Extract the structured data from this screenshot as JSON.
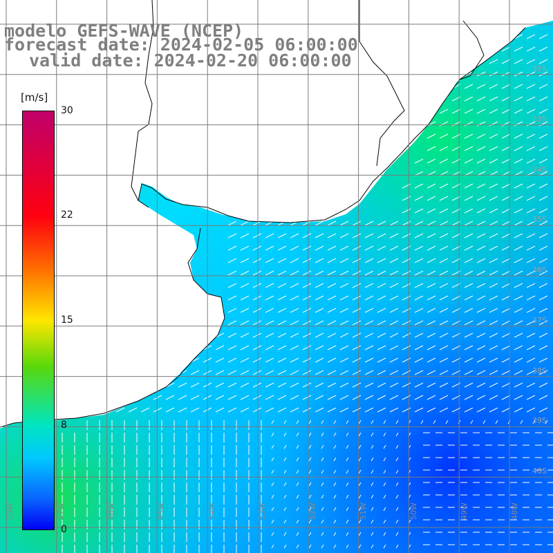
{
  "title": {
    "model": "modelo GEFS-WAVE (NCEP)",
    "forecast": "forecast date: 2024-02-05 06:00:00",
    "valid": "valid date: 2024-02-20 06:00:00"
  },
  "colorbar": {
    "unit": "[m/s]",
    "ticks": [
      "30",
      "22",
      "15",
      "8",
      "0"
    ],
    "tick_values": [
      30,
      22,
      15,
      8,
      0
    ],
    "range": [
      0,
      30
    ],
    "colors": [
      "#0000f5",
      "#0a60ff",
      "#00c8ff",
      "#00e5c0",
      "#5ad80a",
      "#ffe600",
      "#ff7000",
      "#ff0010",
      "#c0006a"
    ]
  },
  "grid": {
    "lat_labels": [
      "32S",
      "33S",
      "34S",
      "35S",
      "36S",
      "37S",
      "38S",
      "39S",
      "40S"
    ],
    "lon_labels": [
      "58W",
      "57W",
      "56W",
      "55W",
      "54W",
      "53W",
      "52W",
      "51W",
      "50W",
      "49W",
      "48W"
    ]
  },
  "map": {
    "variable": "wind speed (m/s) with direction arrows",
    "ocean_low_wind_color": "#0050ff",
    "ocean_mid_wind_color": "#00d8ff",
    "ocean_high_wind_color": "#00ee90",
    "land_color": "#ffffff",
    "coastline_color": "#000000",
    "arrow_color": "#ffffff"
  }
}
